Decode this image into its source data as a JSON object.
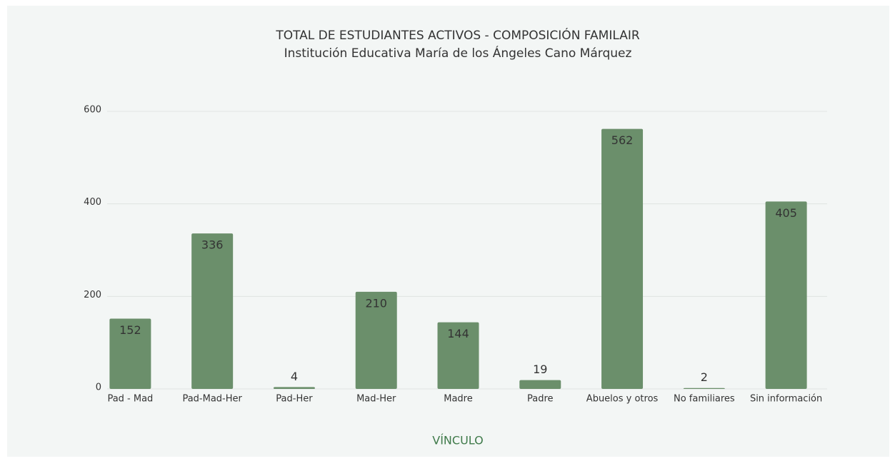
{
  "chart_data": {
    "type": "bar",
    "title": "TOTAL DE ESTUDIANTES ACTIVOS - COMPOSICIÓN FAMILAIR",
    "subtitle": "Institución Educativa María de los Ángeles Cano Márquez",
    "x_label": "VÍNCULO",
    "categories": [
      "Pad - Mad",
      "Pad-Mad-Her",
      "Pad-Her",
      "Mad-Her",
      "Madre",
      "Padre",
      "Abuelos y otros",
      "No familiares",
      "Sin información"
    ],
    "values": [
      152,
      336,
      4,
      210,
      144,
      19,
      562,
      2,
      405
    ],
    "color": "#6b8f6b",
    "ylim": [
      0,
      600
    ],
    "yticks": [
      0,
      200,
      400,
      600
    ],
    "grid": true
  }
}
